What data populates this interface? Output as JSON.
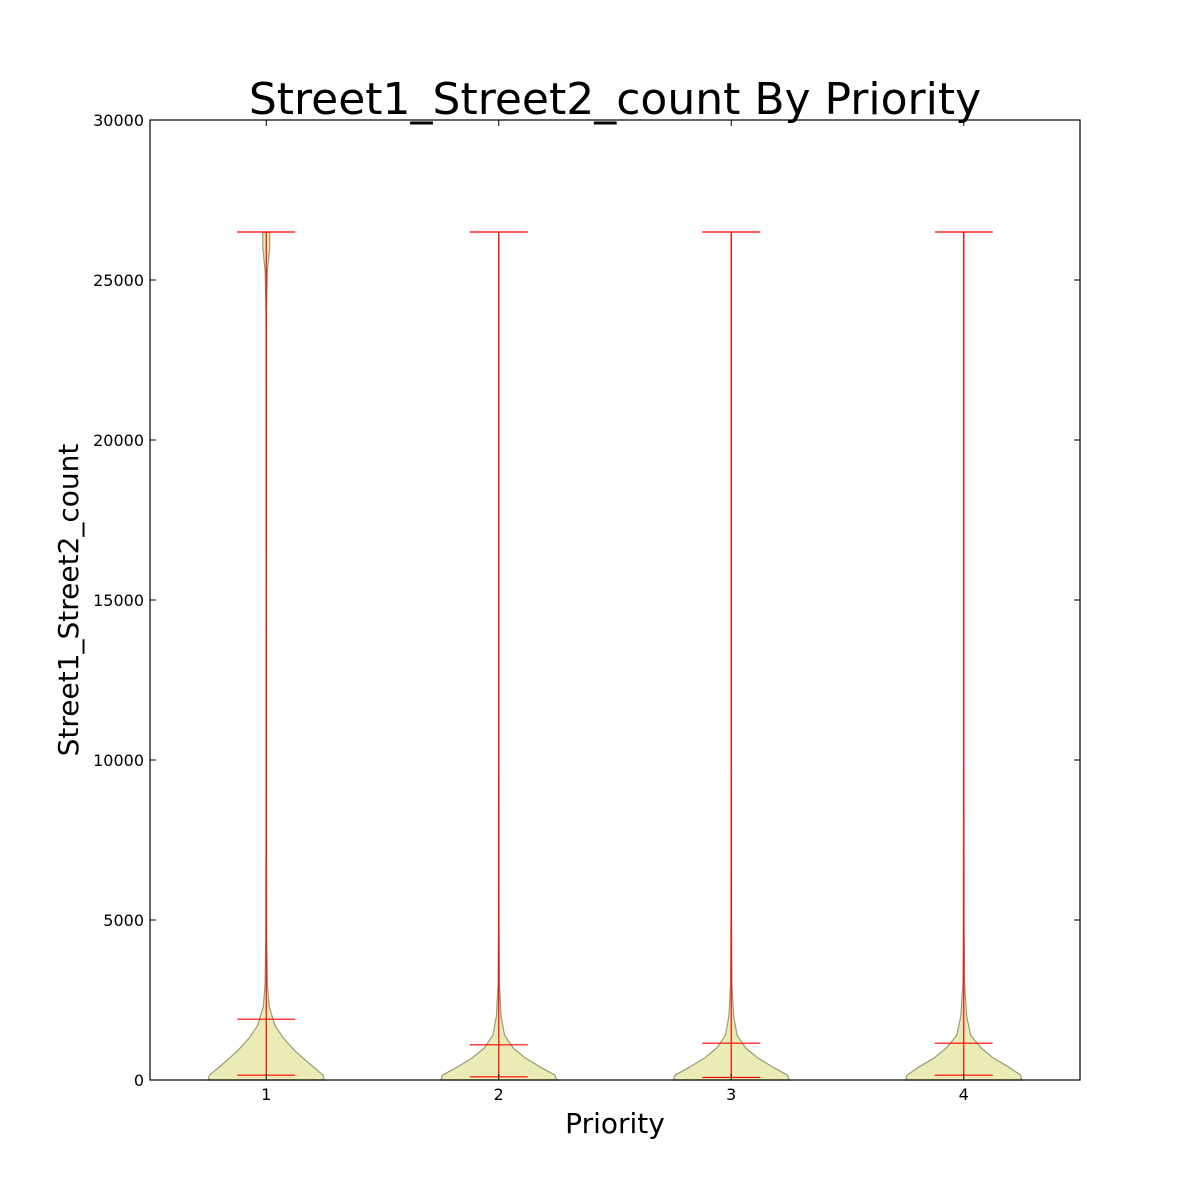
{
  "chart_data": {
    "type": "violin",
    "title": "Street1_Street2_count By Priority",
    "xlabel": "Priority",
    "ylabel": "Street1_Street2_count",
    "categories": [
      "1",
      "2",
      "3",
      "4"
    ],
    "ylim": [
      0,
      30000
    ],
    "yticks": [
      0,
      5000,
      10000,
      15000,
      20000,
      25000,
      30000
    ],
    "grid": false,
    "colors": {
      "violin_fill": "#e8e8a8",
      "violin_edge": "#9a9a78",
      "stats_lines": "#ff0000",
      "axes": "#000000"
    },
    "series": [
      {
        "category": "1",
        "min": 150,
        "mean": 1900,
        "max": 26500,
        "density": [
          [
            0,
            1.0
          ],
          [
            150,
            0.98
          ],
          [
            500,
            0.75
          ],
          [
            900,
            0.5
          ],
          [
            1300,
            0.3
          ],
          [
            1700,
            0.15
          ],
          [
            2300,
            0.05
          ],
          [
            3000,
            0.02
          ],
          [
            4500,
            0.008
          ],
          [
            8000,
            0.004
          ],
          [
            15000,
            0.003
          ],
          [
            24000,
            0.004
          ],
          [
            25300,
            0.02
          ],
          [
            26000,
            0.06
          ],
          [
            26500,
            0.06
          ]
        ]
      },
      {
        "category": "2",
        "min": 100,
        "mean": 1100,
        "max": 26500,
        "density": [
          [
            0,
            1.0
          ],
          [
            150,
            0.97
          ],
          [
            400,
            0.72
          ],
          [
            700,
            0.45
          ],
          [
            1000,
            0.25
          ],
          [
            1400,
            0.1
          ],
          [
            2000,
            0.04
          ],
          [
            3000,
            0.012
          ],
          [
            5000,
            0.005
          ],
          [
            10000,
            0.003
          ],
          [
            20000,
            0.003
          ],
          [
            26500,
            0.003
          ]
        ]
      },
      {
        "category": "3",
        "min": 80,
        "mean": 1150,
        "max": 26500,
        "density": [
          [
            0,
            1.0
          ],
          [
            150,
            0.97
          ],
          [
            400,
            0.72
          ],
          [
            700,
            0.45
          ],
          [
            1000,
            0.25
          ],
          [
            1400,
            0.1
          ],
          [
            2000,
            0.04
          ],
          [
            3000,
            0.012
          ],
          [
            5000,
            0.005
          ],
          [
            10000,
            0.003
          ],
          [
            20000,
            0.003
          ],
          [
            26500,
            0.003
          ]
        ]
      },
      {
        "category": "4",
        "min": 150,
        "mean": 1150,
        "max": 26500,
        "density": [
          [
            0,
            1.0
          ],
          [
            150,
            0.98
          ],
          [
            400,
            0.78
          ],
          [
            700,
            0.5
          ],
          [
            1000,
            0.3
          ],
          [
            1400,
            0.12
          ],
          [
            2000,
            0.05
          ],
          [
            3000,
            0.015
          ],
          [
            5000,
            0.006
          ],
          [
            10000,
            0.003
          ],
          [
            20000,
            0.003
          ],
          [
            26500,
            0.003
          ]
        ]
      }
    ]
  }
}
